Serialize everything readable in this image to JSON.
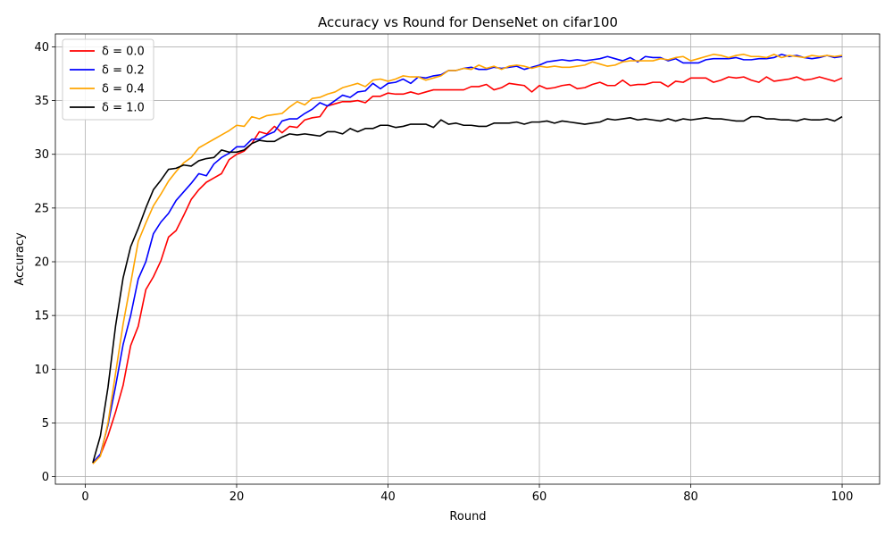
{
  "chart_data": {
    "type": "line",
    "title": "Accuracy vs Round for DenseNet on cifar100",
    "xlabel": "Round",
    "ylabel": "Accuracy",
    "xlim": [
      -3.95,
      104.95
    ],
    "ylim": [
      -0.7,
      41.2
    ],
    "xticks": [
      0,
      20,
      40,
      60,
      80,
      100
    ],
    "yticks": [
      0,
      5,
      10,
      15,
      20,
      25,
      30,
      35,
      40
    ],
    "grid": true,
    "legend": "top-left",
    "x": [
      1,
      2,
      3,
      4,
      5,
      6,
      7,
      8,
      9,
      10,
      11,
      12,
      13,
      14,
      15,
      16,
      17,
      18,
      19,
      20,
      21,
      22,
      23,
      24,
      25,
      26,
      27,
      28,
      29,
      30,
      31,
      32,
      33,
      34,
      35,
      36,
      37,
      38,
      39,
      40,
      41,
      42,
      43,
      44,
      45,
      46,
      47,
      48,
      49,
      50,
      51,
      52,
      53,
      54,
      55,
      56,
      57,
      58,
      59,
      60,
      61,
      62,
      63,
      64,
      65,
      66,
      67,
      68,
      69,
      70,
      71,
      72,
      73,
      74,
      75,
      76,
      77,
      78,
      79,
      80,
      81,
      82,
      83,
      84,
      85,
      86,
      87,
      88,
      89,
      90,
      91,
      92,
      93,
      94,
      95,
      96,
      97,
      98,
      99,
      100
    ],
    "series": [
      {
        "name": "δ = 0.0",
        "color": "#ff0000",
        "values": [
          1.2,
          2.0,
          3.8,
          6.0,
          8.5,
          12.2,
          14.0,
          17.4,
          18.6,
          20.1,
          22.3,
          22.9,
          24.3,
          25.8,
          26.7,
          27.4,
          27.8,
          28.2,
          29.5,
          30.0,
          30.3,
          31.0,
          32.1,
          31.9,
          32.6,
          32.0,
          32.6,
          32.5,
          33.2,
          33.4,
          33.5,
          34.5,
          34.7,
          34.9,
          34.9,
          35.0,
          34.8,
          35.4,
          35.4,
          35.7,
          35.6,
          35.6,
          35.8,
          35.6,
          35.8,
          36.0,
          36.0,
          36.0,
          36.0,
          36.0,
          36.3,
          36.3,
          36.5,
          36.0,
          36.2,
          36.6,
          36.5,
          36.4,
          35.8,
          36.4,
          36.1,
          36.2,
          36.4,
          36.5,
          36.1,
          36.2,
          36.5,
          36.7,
          36.4,
          36.4,
          36.9,
          36.4,
          36.5,
          36.5,
          36.7,
          36.7,
          36.3,
          36.8,
          36.7,
          37.1,
          37.1,
          37.1,
          36.7,
          36.9,
          37.2,
          37.1,
          37.2,
          36.9,
          36.7,
          37.2,
          36.8,
          36.9,
          37.0,
          37.2,
          36.9,
          37.0,
          37.2,
          37.0,
          36.8,
          37.1
        ]
      },
      {
        "name": "δ = 0.2",
        "color": "#0000ff",
        "values": [
          1.3,
          2.1,
          4.8,
          8.4,
          12.3,
          15.0,
          18.4,
          20.0,
          22.6,
          23.7,
          24.5,
          25.7,
          26.5,
          27.3,
          28.2,
          28.0,
          29.1,
          29.7,
          30.1,
          30.7,
          30.7,
          31.4,
          31.4,
          31.8,
          32.1,
          33.1,
          33.3,
          33.3,
          33.8,
          34.2,
          34.8,
          34.5,
          35.0,
          35.5,
          35.3,
          35.8,
          35.9,
          36.6,
          36.1,
          36.6,
          36.7,
          37.0,
          36.6,
          37.2,
          37.1,
          37.3,
          37.4,
          37.8,
          37.8,
          38.0,
          38.1,
          37.9,
          37.9,
          38.1,
          38.0,
          38.1,
          38.2,
          37.9,
          38.1,
          38.3,
          38.6,
          38.7,
          38.8,
          38.7,
          38.8,
          38.7,
          38.8,
          38.9,
          39.1,
          38.9,
          38.7,
          39.0,
          38.6,
          39.1,
          39.0,
          39.0,
          38.7,
          38.9,
          38.5,
          38.5,
          38.5,
          38.8,
          38.9,
          38.9,
          38.9,
          39.0,
          38.8,
          38.8,
          38.9,
          38.9,
          39.0,
          39.3,
          39.1,
          39.2,
          39.0,
          38.9,
          39.0,
          39.2,
          39.0,
          39.1
        ]
      },
      {
        "name": "δ = 0.4",
        "color": "#ffa500",
        "values": [
          1.2,
          1.9,
          5.0,
          9.6,
          14.2,
          18.0,
          21.9,
          23.6,
          25.2,
          26.3,
          27.5,
          28.4,
          29.2,
          29.7,
          30.6,
          31.0,
          31.4,
          31.8,
          32.2,
          32.7,
          32.6,
          33.5,
          33.3,
          33.6,
          33.7,
          33.8,
          34.4,
          34.9,
          34.6,
          35.2,
          35.3,
          35.6,
          35.8,
          36.2,
          36.4,
          36.6,
          36.3,
          36.9,
          37.0,
          36.8,
          37.0,
          37.3,
          37.2,
          37.2,
          36.9,
          37.1,
          37.3,
          37.8,
          37.8,
          38.0,
          37.9,
          38.3,
          38.0,
          38.2,
          37.9,
          38.2,
          38.3,
          38.2,
          38.0,
          38.2,
          38.1,
          38.2,
          38.1,
          38.1,
          38.2,
          38.3,
          38.6,
          38.4,
          38.2,
          38.3,
          38.6,
          38.7,
          38.7,
          38.7,
          38.7,
          38.9,
          38.8,
          39.0,
          39.1,
          38.7,
          38.9,
          39.1,
          39.3,
          39.2,
          39.0,
          39.2,
          39.3,
          39.1,
          39.1,
          39.0,
          39.3,
          39.0,
          39.2,
          39.1,
          39.0,
          39.2,
          39.1,
          39.2,
          39.1,
          39.2
        ]
      },
      {
        "name": "δ = 1.0",
        "color": "#000000",
        "values": [
          1.3,
          3.8,
          8.3,
          14.0,
          18.5,
          21.4,
          23.1,
          25.0,
          26.7,
          27.6,
          28.6,
          28.7,
          29.0,
          28.9,
          29.4,
          29.6,
          29.7,
          30.4,
          30.2,
          30.2,
          30.4,
          31.0,
          31.3,
          31.2,
          31.2,
          31.6,
          31.9,
          31.8,
          31.9,
          31.8,
          31.7,
          32.1,
          32.1,
          31.9,
          32.4,
          32.1,
          32.4,
          32.4,
          32.7,
          32.7,
          32.5,
          32.6,
          32.8,
          32.8,
          32.8,
          32.5,
          33.2,
          32.8,
          32.9,
          32.7,
          32.7,
          32.6,
          32.6,
          32.9,
          32.9,
          32.9,
          33.0,
          32.8,
          33.0,
          33.0,
          33.1,
          32.9,
          33.1,
          33.0,
          32.9,
          32.8,
          32.9,
          33.0,
          33.3,
          33.2,
          33.3,
          33.4,
          33.2,
          33.3,
          33.2,
          33.1,
          33.3,
          33.1,
          33.3,
          33.2,
          33.3,
          33.4,
          33.3,
          33.3,
          33.2,
          33.1,
          33.1,
          33.5,
          33.5,
          33.3,
          33.3,
          33.2,
          33.2,
          33.1,
          33.3,
          33.2,
          33.2,
          33.3,
          33.1,
          33.5
        ]
      }
    ]
  }
}
